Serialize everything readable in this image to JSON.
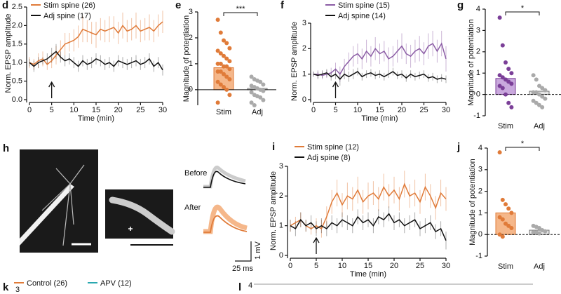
{
  "chart_data": [
    {
      "type": "line",
      "panel": "d",
      "xlabel": "Time (min)",
      "ylabel": "Norm. EPSP amplitude",
      "x": [
        0,
        1,
        2,
        3,
        4,
        5,
        6,
        7,
        8,
        9,
        10,
        11,
        12,
        13,
        14,
        15,
        16,
        17,
        18,
        19,
        20,
        21,
        22,
        23,
        24,
        25,
        26,
        27,
        28,
        29,
        30
      ],
      "xlim": [
        0,
        30
      ],
      "xticks": [
        0,
        5,
        10,
        15,
        20,
        25,
        30
      ],
      "ylim": [
        0,
        2.5
      ],
      "yticks": [
        {
          "value": 0,
          "label": "0.0"
        },
        {
          "value": 0.5,
          "label": "0.5"
        },
        {
          "value": 1,
          "label": "1.0"
        },
        {
          "value": 1.5,
          "label": "1.5"
        },
        {
          "value": 2,
          "label": "2.0"
        },
        {
          "value": 2.5,
          "label": "2.5"
        }
      ],
      "arrow_x": 5,
      "series": [
        {
          "name": "Stim spine (26)",
          "color": "#e07b39",
          "values": [
            1.0,
            0.95,
            1.05,
            1.1,
            0.95,
            1.05,
            1.2,
            1.35,
            1.5,
            1.55,
            1.6,
            1.7,
            1.9,
            1.85,
            1.8,
            1.75,
            1.9,
            1.85,
            1.9,
            1.95,
            1.8,
            2.0,
            1.85,
            1.9,
            2.0,
            1.85,
            1.9,
            1.95,
            1.85,
            2.0,
            2.1
          ],
          "errors": [
            0.15,
            0.15,
            0.2,
            0.2,
            0.15,
            0.2,
            0.25,
            0.25,
            0.3,
            0.25,
            0.3,
            0.3,
            0.35,
            0.3,
            0.3,
            0.35,
            0.3,
            0.3,
            0.35,
            0.3,
            0.3,
            0.35,
            0.3,
            0.3,
            0.35,
            0.3,
            0.3,
            0.35,
            0.3,
            0.3,
            0.3
          ]
        },
        {
          "name": "Adj spine (17)",
          "color": "#111111",
          "values": [
            1.0,
            0.9,
            1.0,
            1.05,
            1.1,
            1.2,
            1.3,
            1.15,
            1.05,
            1.1,
            1.0,
            0.9,
            1.05,
            0.95,
            1.0,
            1.1,
            1.05,
            0.95,
            1.0,
            0.9,
            1.05,
            1.0,
            0.95,
            1.0,
            1.05,
            0.95,
            1.0,
            1.1,
            0.9,
            1.0,
            0.8
          ],
          "errors": [
            0.1,
            0.15,
            0.15,
            0.1,
            0.15,
            0.2,
            0.2,
            0.15,
            0.15,
            0.15,
            0.15,
            0.15,
            0.15,
            0.15,
            0.15,
            0.15,
            0.15,
            0.15,
            0.15,
            0.15,
            0.15,
            0.15,
            0.15,
            0.15,
            0.15,
            0.15,
            0.15,
            0.15,
            0.15,
            0.15,
            0.15
          ]
        }
      ]
    },
    {
      "type": "bar",
      "panel": "e",
      "ylabel": "Magnitude of potentiation",
      "categories": [
        "Stim",
        "Adj"
      ],
      "values": [
        0.85,
        0.05
      ],
      "ylim": [
        -0.6,
        3
      ],
      "yticks": [
        0,
        1,
        2,
        3
      ],
      "significance": "***",
      "zero_line": "solid",
      "colors": [
        "#e07b39",
        "#aaaaaa"
      ],
      "bar_colors": [
        "#f5b78a",
        "#e6e6e6"
      ],
      "points": [
        [
          2.7,
          2.2,
          1.9,
          1.8,
          1.6,
          1.5,
          1.4,
          1.3,
          1.2,
          1.1,
          1.0,
          1.0,
          0.9,
          0.9,
          0.8,
          0.7,
          0.7,
          0.6,
          0.5,
          0.4,
          0.3,
          0.2,
          0.1,
          0.0,
          -0.2,
          -0.5
        ],
        [
          0.5,
          0.4,
          0.35,
          0.3,
          0.2,
          0.15,
          0.1,
          0.05,
          0.0,
          -0.05,
          -0.1,
          -0.2,
          -0.25,
          -0.3,
          -0.4,
          -0.5,
          -0.6
        ]
      ]
    },
    {
      "type": "line",
      "panel": "f",
      "xlabel": "Time (min)",
      "ylabel": "Norm. EPSP amplitude",
      "x": [
        0,
        1,
        2,
        3,
        4,
        5,
        6,
        7,
        8,
        9,
        10,
        11,
        12,
        13,
        14,
        15,
        16,
        17,
        18,
        19,
        20,
        21,
        22,
        23,
        24,
        25,
        26,
        27,
        28,
        29,
        30
      ],
      "xlim": [
        0,
        30
      ],
      "xticks": [
        0,
        5,
        10,
        15,
        20,
        25,
        30
      ],
      "ylim": [
        0,
        3
      ],
      "yticks": [
        0,
        1,
        2,
        3
      ],
      "arrow_x": 5,
      "series": [
        {
          "name": "Stim spine (15)",
          "color": "#8b5ca5",
          "values": [
            1.0,
            1.0,
            0.95,
            1.0,
            1.05,
            1.2,
            1.0,
            1.3,
            1.5,
            1.7,
            1.8,
            1.6,
            1.9,
            1.7,
            2.0,
            1.8,
            1.9,
            1.6,
            1.7,
            1.9,
            2.1,
            1.8,
            1.7,
            1.9,
            2.0,
            1.8,
            2.1,
            2.2,
            1.9,
            2.2,
            1.6
          ],
          "errors": [
            0.1,
            0.15,
            0.15,
            0.15,
            0.2,
            0.25,
            0.3,
            0.3,
            0.35,
            0.4,
            0.4,
            0.4,
            0.45,
            0.4,
            0.45,
            0.4,
            0.4,
            0.45,
            0.4,
            0.45,
            0.5,
            0.4,
            0.45,
            0.45,
            0.5,
            0.45,
            0.5,
            0.5,
            0.45,
            0.5,
            0.5
          ]
        },
        {
          "name": "Adj spine (14)",
          "color": "#111111",
          "values": [
            1.0,
            0.95,
            1.0,
            1.05,
            0.9,
            1.0,
            0.8,
            1.0,
            0.9,
            1.0,
            1.1,
            0.9,
            1.0,
            1.05,
            0.95,
            1.0,
            0.9,
            1.0,
            1.1,
            0.95,
            1.0,
            0.85,
            1.0,
            0.9,
            0.95,
            1.0,
            0.85,
            0.9,
            0.8,
            0.85,
            0.8
          ],
          "errors": [
            0.1,
            0.15,
            0.15,
            0.15,
            0.15,
            0.2,
            0.25,
            0.2,
            0.2,
            0.2,
            0.15,
            0.15,
            0.15,
            0.15,
            0.15,
            0.15,
            0.15,
            0.15,
            0.15,
            0.15,
            0.15,
            0.15,
            0.15,
            0.15,
            0.15,
            0.15,
            0.15,
            0.15,
            0.15,
            0.15,
            0.15
          ]
        }
      ]
    },
    {
      "type": "bar",
      "panel": "g",
      "ylabel": "Magnitude of potentiation",
      "categories": [
        "Stim",
        "Adj"
      ],
      "values": [
        0.75,
        0.15
      ],
      "ylim": [
        -1,
        4
      ],
      "yticks": [
        -1,
        0,
        1,
        2,
        3,
        4
      ],
      "significance": "*",
      "zero_line": "dashed",
      "colors": [
        "#7b3f98",
        "#aaaaaa"
      ],
      "bar_colors": [
        "#c9a8dd",
        "#e6e6e6"
      ],
      "points": [
        [
          3.6,
          2.3,
          1.5,
          1.2,
          1.0,
          0.9,
          0.8,
          0.7,
          0.6,
          0.5,
          0.4,
          0.3,
          0.0,
          -0.4,
          -0.6
        ],
        [
          0.9,
          0.7,
          0.4,
          0.3,
          0.2,
          0.1,
          0.1,
          0.0,
          -0.1,
          -0.2,
          -0.3,
          -0.4,
          -0.5,
          -0.6
        ]
      ]
    },
    {
      "type": "line",
      "panel": "i",
      "xlabel": "Time (min)",
      "ylabel": "Norm. EPSP amplitude",
      "x": [
        0,
        1,
        2,
        3,
        4,
        5,
        6,
        7,
        8,
        9,
        10,
        11,
        12,
        13,
        14,
        15,
        16,
        17,
        18,
        19,
        20,
        21,
        22,
        23,
        24,
        25,
        26,
        27,
        28,
        29,
        30
      ],
      "xlim": [
        0,
        30
      ],
      "xticks": [
        0,
        5,
        10,
        15,
        20,
        25,
        30
      ],
      "ylim": [
        0,
        3
      ],
      "yticks": [
        0,
        1,
        2,
        3
      ],
      "arrow_x": 5,
      "series": [
        {
          "name": "Stim spine (12)",
          "color": "#e07b39",
          "values": [
            1.0,
            1.1,
            1.2,
            1.0,
            0.9,
            1.0,
            0.9,
            1.3,
            1.8,
            2.1,
            1.7,
            2.0,
            1.9,
            2.2,
            1.8,
            2.0,
            2.1,
            1.9,
            2.3,
            2.0,
            2.2,
            1.9,
            2.4,
            2.0,
            2.1,
            1.8,
            2.3,
            2.0,
            1.6,
            2.1,
            1.9
          ],
          "errors": [
            0.2,
            0.2,
            0.25,
            0.2,
            0.2,
            0.25,
            0.3,
            0.35,
            0.4,
            0.45,
            0.4,
            0.45,
            0.4,
            0.45,
            0.4,
            0.45,
            0.4,
            0.4,
            0.45,
            0.4,
            0.45,
            0.4,
            0.45,
            0.4,
            0.45,
            0.4,
            0.45,
            0.4,
            0.4,
            0.45,
            0.4
          ]
        },
        {
          "name": "Adj spine (8)",
          "color": "#111111",
          "values": [
            1.0,
            0.9,
            1.2,
            1.0,
            1.1,
            0.9,
            1.0,
            0.9,
            1.1,
            1.0,
            1.2,
            1.1,
            1.0,
            1.3,
            1.1,
            1.2,
            1.0,
            1.3,
            1.2,
            1.4,
            1.1,
            1.2,
            1.0,
            1.1,
            1.2,
            0.9,
            1.0,
            1.1,
            0.8,
            0.9,
            0.5
          ],
          "errors": [
            0.2,
            0.25,
            0.25,
            0.2,
            0.25,
            0.25,
            0.25,
            0.25,
            0.25,
            0.25,
            0.25,
            0.25,
            0.25,
            0.25,
            0.25,
            0.25,
            0.25,
            0.25,
            0.25,
            0.25,
            0.25,
            0.25,
            0.25,
            0.25,
            0.25,
            0.25,
            0.25,
            0.25,
            0.25,
            0.25,
            0.3
          ]
        }
      ]
    },
    {
      "type": "bar",
      "panel": "j",
      "ylabel": "Magnitude of potentiation",
      "categories": [
        "Stim",
        "Adj"
      ],
      "values": [
        1.0,
        0.2
      ],
      "ylim": [
        -1,
        4
      ],
      "yticks": [
        -1,
        0,
        1,
        2,
        3,
        4
      ],
      "significance": "*",
      "zero_line": "dashed",
      "colors": [
        "#e07b39",
        "#aaaaaa"
      ],
      "bar_colors": [
        "#f5b78a",
        "#e6e6e6"
      ],
      "points": [
        [
          3.8,
          1.6,
          1.4,
          1.2,
          1.0,
          0.8,
          0.7,
          0.5,
          0.4,
          0.3,
          0.0,
          -0.1
        ],
        [
          0.4,
          0.35,
          0.3,
          0.2,
          0.15,
          0.1,
          0.1,
          0.05
        ]
      ]
    }
  ],
  "panel_h": {
    "label": "h",
    "before": "Before",
    "after": "After",
    "scale_v": "1 mV",
    "scale_t": "25 ms"
  },
  "panel_k": {
    "label": "k",
    "tick": "3",
    "legend": [
      {
        "name": "Control (26)",
        "color": "#e07b39"
      },
      {
        "name": "APV (12)",
        "color": "#2aa8b0"
      }
    ]
  },
  "panel_l": {
    "label": "l",
    "tick": "4"
  }
}
